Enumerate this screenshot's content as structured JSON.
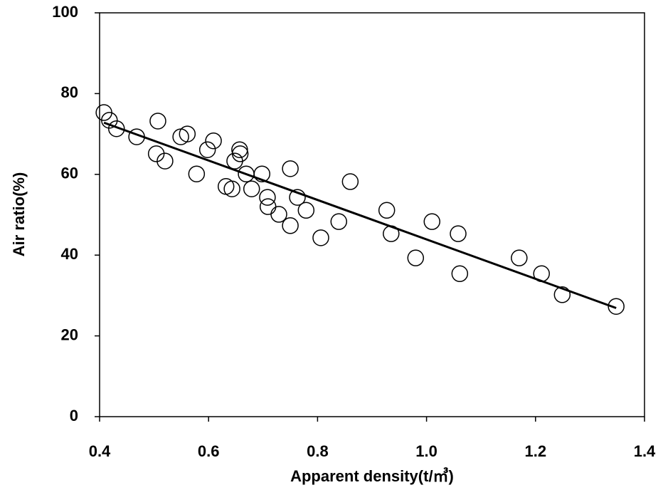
{
  "chart_data": {
    "type": "scatter",
    "x_label": "Apparent density(t/㎥)",
    "y_label": "Air ratio(%)",
    "xlim": [
      0.4,
      1.4
    ],
    "xticks": [
      0.4,
      0.6,
      0.8,
      {
        "value": 1,
        "label": "1.0"
      },
      1.2,
      1.4
    ],
    "ylim": [
      0,
      100
    ],
    "yticks": [
      0,
      20,
      40,
      60,
      80,
      100
    ],
    "series": [
      {
        "color": "#000000",
        "x": [
          0.408,
          0.418,
          0.431,
          0.468,
          0.507,
          0.504,
          0.52,
          0.549,
          0.561,
          0.578,
          0.598,
          0.609,
          0.632,
          0.643,
          0.648,
          0.657,
          0.658,
          0.669,
          0.679,
          0.698,
          0.708,
          0.709,
          0.729,
          0.75,
          0.75,
          0.763,
          0.779,
          0.806,
          0.839,
          0.86,
          0.927,
          0.935,
          0.98,
          1.01,
          1.058,
          1.061,
          1.17,
          1.211,
          1.249,
          1.348
        ],
        "values": [
          75.3,
          73.4,
          71.3,
          69.3,
          73.2,
          65.1,
          63.3,
          69.3,
          70.0,
          60.1,
          66.1,
          68.3,
          57.0,
          56.4,
          63.3,
          66.1,
          65.1,
          60.1,
          56.4,
          60.1,
          54.3,
          52.0,
          50.1,
          61.4,
          47.3,
          54.3,
          51.1,
          44.3,
          48.3,
          58.2,
          51.1,
          45.3,
          39.3,
          48.3,
          45.3,
          35.4,
          39.3,
          35.4,
          30.2,
          27.3
        ]
      }
    ],
    "trendline": {
      "color": "#000000",
      "x": [
        0.408,
        1.348
      ],
      "values": [
        72.8,
        26.9
      ]
    }
  }
}
